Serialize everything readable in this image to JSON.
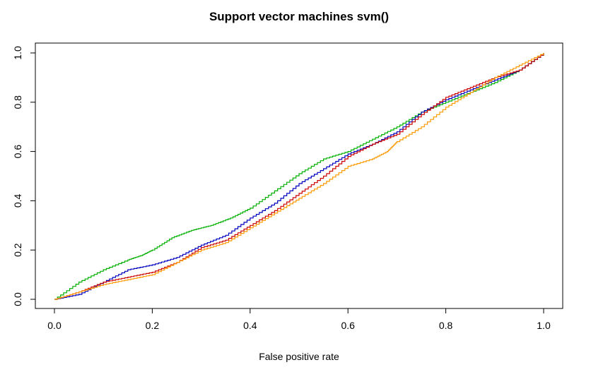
{
  "chart_data": {
    "type": "line",
    "title": "Support vector machines svm()",
    "xlabel": "False positive rate",
    "ylabel": "",
    "xlim": [
      0.0,
      1.0
    ],
    "ylim": [
      0.0,
      1.0
    ],
    "xticks": [
      "0.0",
      "0.2",
      "0.4",
      "0.6",
      "0.8",
      "1.0"
    ],
    "yticks": [
      "0.0",
      "0.2",
      "0.4",
      "0.6",
      "0.8",
      "1.0"
    ],
    "grid": false,
    "legend": "none",
    "series": [
      {
        "color": "#00B000",
        "x": [
          0.0,
          0.05,
          0.1,
          0.15,
          0.18,
          0.2,
          0.24,
          0.28,
          0.32,
          0.36,
          0.4,
          0.45,
          0.5,
          0.55,
          0.6,
          0.65,
          0.7,
          0.75,
          0.8,
          0.85,
          0.9,
          0.95,
          1.0
        ],
        "y": [
          0.0,
          0.07,
          0.12,
          0.16,
          0.18,
          0.2,
          0.25,
          0.28,
          0.3,
          0.33,
          0.37,
          0.44,
          0.51,
          0.57,
          0.6,
          0.65,
          0.7,
          0.76,
          0.8,
          0.84,
          0.88,
          0.93,
          1.0
        ]
      },
      {
        "color": "#0000C0",
        "x": [
          0.0,
          0.05,
          0.1,
          0.15,
          0.2,
          0.25,
          0.3,
          0.35,
          0.4,
          0.45,
          0.5,
          0.55,
          0.6,
          0.65,
          0.7,
          0.75,
          0.8,
          0.85,
          0.9,
          0.95,
          1.0
        ],
        "y": [
          0.0,
          0.02,
          0.07,
          0.12,
          0.14,
          0.17,
          0.22,
          0.26,
          0.33,
          0.39,
          0.47,
          0.53,
          0.59,
          0.63,
          0.68,
          0.76,
          0.81,
          0.85,
          0.89,
          0.93,
          1.0
        ]
      },
      {
        "color": "#CC0000",
        "x": [
          0.0,
          0.05,
          0.1,
          0.15,
          0.2,
          0.25,
          0.3,
          0.35,
          0.4,
          0.45,
          0.5,
          0.55,
          0.6,
          0.65,
          0.7,
          0.75,
          0.8,
          0.85,
          0.9,
          0.95,
          1.0
        ],
        "y": [
          0.0,
          0.03,
          0.07,
          0.09,
          0.11,
          0.15,
          0.21,
          0.24,
          0.3,
          0.36,
          0.43,
          0.5,
          0.58,
          0.63,
          0.67,
          0.75,
          0.82,
          0.86,
          0.9,
          0.93,
          1.0
        ]
      },
      {
        "color": "#FF9900",
        "x": [
          0.0,
          0.05,
          0.1,
          0.15,
          0.2,
          0.25,
          0.3,
          0.35,
          0.4,
          0.45,
          0.5,
          0.55,
          0.6,
          0.65,
          0.68,
          0.7,
          0.75,
          0.8,
          0.85,
          0.9,
          0.95,
          1.0
        ],
        "y": [
          0.0,
          0.03,
          0.06,
          0.08,
          0.1,
          0.15,
          0.2,
          0.23,
          0.29,
          0.35,
          0.41,
          0.47,
          0.54,
          0.57,
          0.6,
          0.64,
          0.7,
          0.78,
          0.84,
          0.9,
          0.95,
          1.0
        ]
      }
    ]
  }
}
